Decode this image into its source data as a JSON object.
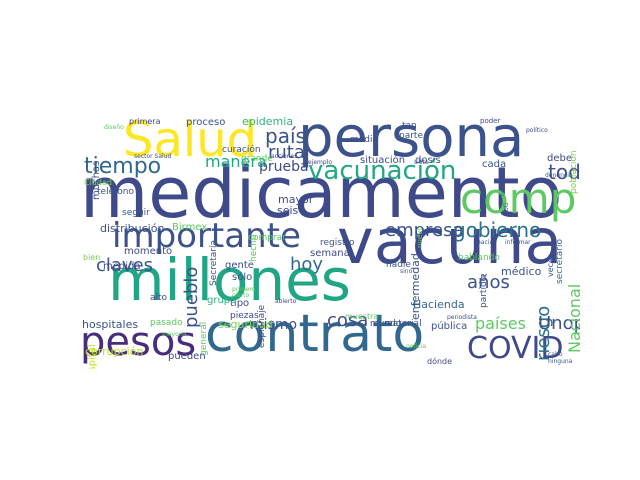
{
  "words": [
    {
      "text": "medicamento",
      "color": "#3e4a89"
    },
    {
      "text": "persona",
      "color": "#3b528b"
    },
    {
      "text": "contrato",
      "color": "#31688e"
    },
    {
      "text": "millones",
      "color": "#21a685"
    },
    {
      "text": "vacuna",
      "color": "#3e4a89"
    },
    {
      "text": "Salud",
      "color": "#fde725"
    },
    {
      "text": "importante",
      "color": "#3b528b"
    },
    {
      "text": "compra",
      "color": "#5ec962"
    },
    {
      "text": "pesos",
      "color": "#472d7b"
    },
    {
      "text": "COVID",
      "color": "#3e4a89"
    },
    {
      "text": "vacunación",
      "color": "#22a884"
    },
    {
      "text": "tiempo",
      "color": "#31688e"
    },
    {
      "text": "gobierno",
      "color": "#2c728e"
    },
    {
      "text": "empresa",
      "color": "#3b528b"
    },
    {
      "text": "toda",
      "color": "#3b528b"
    },
    {
      "text": "país",
      "color": "#3b528b"
    },
    {
      "text": "ruta",
      "color": "#3b528b"
    },
    {
      "text": "riesgo",
      "color": "#2c728e"
    },
    {
      "text": "claves",
      "color": "#3b528b"
    },
    {
      "text": "hoy",
      "color": "#31688e"
    },
    {
      "text": "años",
      "color": "#3b528b"
    },
    {
      "text": "cosa",
      "color": "#3e4a89"
    },
    {
      "text": "países",
      "color": "#5ec962"
    },
    {
      "text": "Unops",
      "color": "#3b528b"
    },
    {
      "text": "Nacional",
      "color": "#5ec962"
    },
    {
      "text": "manera",
      "color": "#21a685"
    },
    {
      "text": "prueba",
      "color": "#3e4a89"
    },
    {
      "text": "pueblo",
      "color": "#3b528b"
    },
    {
      "text": "mismo",
      "color": "#3b528b"
    },
    {
      "text": "epidemia",
      "color": "#2fb47c"
    },
    {
      "text": "hospitales",
      "color": "#3b528b"
    },
    {
      "text": "seguridad",
      "color": "#7ad151"
    },
    {
      "text": "corrupción",
      "color": "#bddf26"
    },
    {
      "text": "distribución",
      "color": "#3b528b"
    },
    {
      "text": "Birmex",
      "color": "#5ec962"
    },
    {
      "text": "momento",
      "color": "#3e4a89"
    },
    {
      "text": "semana",
      "color": "#3e4a89"
    },
    {
      "text": "enfermedad",
      "color": "#3b528b"
    },
    {
      "text": "médico",
      "color": "#3b528b"
    },
    {
      "text": "debe",
      "color": "#3e4a89"
    },
    {
      "text": "cada",
      "color": "#3b528b"
    },
    {
      "text": "situación",
      "color": "#3e4a89"
    },
    {
      "text": "dosis",
      "color": "#3b528b"
    },
    {
      "text": "mayor",
      "color": "#3e4a89"
    },
    {
      "text": "seis",
      "color": "#3e4a89"
    },
    {
      "text": "gente",
      "color": "#3e4a89"
    },
    {
      "text": "sólo",
      "color": "#3b528b"
    },
    {
      "text": "tipo",
      "color": "#3b528b"
    },
    {
      "text": "Hacienda",
      "color": "#31688e"
    },
    {
      "text": "pública",
      "color": "#3b528b"
    },
    {
      "text": "pueden",
      "color": "#3e4a89"
    },
    {
      "text": "muchas",
      "color": "#3e4a89"
    },
    {
      "text": "hospital",
      "color": "#bddf26"
    },
    {
      "text": "medida",
      "color": "#3e4a89"
    },
    {
      "text": "alto",
      "color": "#3e4a89"
    },
    {
      "text": "pasado",
      "color": "#5ec962"
    },
    {
      "text": "grupo",
      "color": "#2fb47c"
    },
    {
      "text": "general",
      "color": "#5ec962"
    },
    {
      "text": "piezas",
      "color": "#3e4a89"
    },
    {
      "text": "espionaje",
      "color": "#3b528b"
    },
    {
      "text": "material",
      "color": "#3b528b"
    },
    {
      "text": "registro",
      "color": "#3b528b"
    },
    {
      "text": "nadie",
      "color": "#3b528b"
    },
    {
      "text": "mundo",
      "color": "#3b528b"
    },
    {
      "text": "hablando",
      "color": "#5ec962"
    },
    {
      "text": "población",
      "color": "#7ad151"
    },
    {
      "text": "secretario",
      "color": "#2c728e"
    },
    {
      "text": "partido",
      "color": "#3b528b"
    },
    {
      "text": "veces",
      "color": "#3b528b"
    },
    {
      "text": "Secretaría",
      "color": "#3b528b"
    },
    {
      "text": "hecho",
      "color": "#5ec962"
    },
    {
      "text": "seguir",
      "color": "#3b528b"
    },
    {
      "text": "comprar",
      "color": "#5ec962"
    },
    {
      "text": "teléfono",
      "color": "#3b528b"
    },
    {
      "text": "Ciudad",
      "color": "#7ad151"
    },
    {
      "text": "proceso",
      "color": "#3b528b"
    },
    {
      "text": "primera",
      "color": "#3e4a89"
    },
    {
      "text": "grande",
      "color": "#5ec962"
    },
    {
      "text": "medio",
      "color": "#3e4a89"
    },
    {
      "text": "parte",
      "color": "#3b528b"
    },
    {
      "text": "tan",
      "color": "#3b528b"
    },
    {
      "text": "curación",
      "color": "#3b528b"
    },
    {
      "text": "muestra",
      "color": "#5ec962"
    },
    {
      "text": "dónde",
      "color": "#3e4a89"
    },
    {
      "text": "bien",
      "color": "#7ad151"
    },
    {
      "text": "sector Salud",
      "color": "#3b528b"
    },
    {
      "text": "acciones",
      "color": "#3e4a89"
    },
    {
      "text": "ejemplo",
      "color": "#3e4a89"
    },
    {
      "text": "siete",
      "color": "#3e4a89"
    },
    {
      "text": "nuevo",
      "color": "#5ec962"
    },
    {
      "text": "poder",
      "color": "#3e4a89"
    },
    {
      "text": "político",
      "color": "#3e4a89"
    },
    {
      "text": "informar",
      "color": "#3b528b"
    },
    {
      "text": "periodista",
      "color": "#3b528b"
    },
    {
      "text": "HUG",
      "color": "#3b528b"
    },
    {
      "text": "diseño",
      "color": "#5ec962"
    },
    {
      "text": "primero",
      "color": "#5ec962"
    },
    {
      "text": "cierto",
      "color": "#5ec962"
    },
    {
      "text": "abierto",
      "color": "#3e4a89"
    },
    {
      "text": "sino",
      "color": "#3b528b"
    },
    {
      "text": "denuncia",
      "color": "#3b528b"
    },
    {
      "text": "ninguna",
      "color": "#3b528b"
    },
    {
      "text": "cabo",
      "color": "#3b528b"
    },
    {
      "text": "noticia",
      "color": "#5ec962"
    },
    {
      "text": "mayoría",
      "color": "#5ec962"
    },
    {
      "text": "hacia",
      "color": "#3b528b"
    },
    {
      "text": "número",
      "color": "#3b528b"
    }
  ]
}
